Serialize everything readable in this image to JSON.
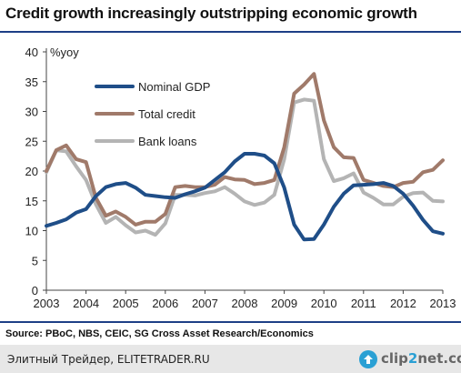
{
  "title": "Credit growth increasingly outstripping economic growth",
  "source": "Source: PBoC, NBS, CEIC, SG Cross Asset Research/Economics",
  "footer": {
    "text": "Элитный Трейдер, ELITETRADER.RU",
    "logo_prefix": "clip",
    "logo_num": "2",
    "logo_suffix": "net.com"
  },
  "chart_data": {
    "type": "line",
    "ylabel": "%yoy",
    "ylim": [
      0,
      40
    ],
    "yticks": [
      0,
      5,
      10,
      15,
      20,
      25,
      30,
      35,
      40
    ],
    "xlim": [
      2003,
      2013
    ],
    "xticks": [
      2003,
      2004,
      2005,
      2006,
      2007,
      2008,
      2009,
      2010,
      2011,
      2012,
      2013
    ],
    "grid": false,
    "legend_position": "top-left",
    "series": [
      {
        "name": "Nominal GDP",
        "color": "#1f4e88",
        "x": [
          2003.0,
          2003.25,
          2003.5,
          2003.75,
          2004.0,
          2004.25,
          2004.5,
          2004.75,
          2005.0,
          2005.25,
          2005.5,
          2005.75,
          2006.0,
          2006.25,
          2006.5,
          2006.75,
          2007.0,
          2007.25,
          2007.5,
          2007.75,
          2008.0,
          2008.25,
          2008.5,
          2008.75,
          2009.0,
          2009.25,
          2009.5,
          2009.75,
          2010.0,
          2010.25,
          2010.5,
          2010.75,
          2011.0,
          2011.25,
          2011.5,
          2011.75,
          2012.0,
          2012.25,
          2012.5,
          2012.75,
          2013.0
        ],
        "values": [
          10.8,
          11.3,
          11.9,
          13.0,
          13.6,
          15.8,
          17.3,
          17.8,
          18.0,
          17.2,
          16.0,
          15.8,
          15.6,
          15.5,
          16.1,
          16.6,
          17.2,
          18.5,
          19.8,
          21.6,
          22.9,
          22.9,
          22.6,
          21.3,
          17.2,
          11.0,
          8.5,
          8.6,
          11.0,
          14.0,
          16.2,
          17.6,
          17.7,
          17.8,
          18.0,
          17.5,
          16.2,
          14.2,
          11.8,
          9.9,
          9.5
        ]
      },
      {
        "name": "Total credit",
        "color": "#a07a6a",
        "x": [
          2003.0,
          2003.25,
          2003.5,
          2003.75,
          2004.0,
          2004.25,
          2004.5,
          2004.75,
          2005.0,
          2005.25,
          2005.5,
          2005.75,
          2006.0,
          2006.25,
          2006.5,
          2006.75,
          2007.0,
          2007.25,
          2007.5,
          2007.75,
          2008.0,
          2008.25,
          2008.5,
          2008.75,
          2009.0,
          2009.25,
          2009.5,
          2009.75,
          2010.0,
          2010.25,
          2010.5,
          2010.75,
          2011.0,
          2011.25,
          2011.5,
          2011.75,
          2012.0,
          2012.25,
          2012.5,
          2012.75,
          2013.0
        ],
        "values": [
          20.0,
          23.5,
          24.3,
          22.0,
          21.5,
          15.5,
          12.5,
          13.2,
          12.3,
          11.0,
          11.5,
          11.5,
          12.8,
          17.3,
          17.5,
          17.3,
          17.3,
          17.7,
          19.0,
          18.6,
          18.5,
          17.8,
          18.0,
          18.5,
          24.0,
          33.0,
          34.5,
          36.3,
          28.5,
          24.0,
          22.3,
          22.2,
          18.5,
          18.0,
          17.5,
          17.3,
          18.0,
          18.2,
          19.8,
          20.2,
          21.8
        ]
      },
      {
        "name": "Bank loans",
        "color": "#b4b4b4",
        "x": [
          2003.0,
          2003.25,
          2003.5,
          2003.75,
          2004.0,
          2004.25,
          2004.5,
          2004.75,
          2005.0,
          2005.25,
          2005.5,
          2005.75,
          2006.0,
          2006.25,
          2006.5,
          2006.75,
          2007.0,
          2007.25,
          2007.5,
          2007.75,
          2008.0,
          2008.25,
          2008.5,
          2008.75,
          2009.0,
          2009.25,
          2009.5,
          2009.75,
          2010.0,
          2010.25,
          2010.5,
          2010.75,
          2011.0,
          2011.25,
          2011.5,
          2011.75,
          2012.0,
          2012.25,
          2012.5,
          2012.75,
          2013.0
        ],
        "values": [
          19.8,
          23.5,
          23.3,
          20.8,
          18.5,
          14.4,
          11.3,
          12.3,
          10.9,
          9.7,
          10.0,
          9.3,
          11.2,
          16.0,
          16.0,
          15.9,
          16.3,
          16.6,
          17.3,
          16.2,
          14.9,
          14.3,
          14.7,
          16.0,
          22.0,
          31.5,
          32.0,
          31.8,
          22.0,
          18.3,
          18.8,
          19.6,
          16.4,
          15.5,
          14.4,
          14.4,
          15.7,
          16.3,
          16.4,
          15.0,
          14.9
        ]
      }
    ]
  }
}
